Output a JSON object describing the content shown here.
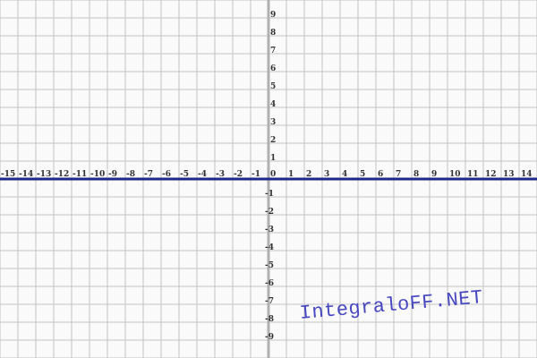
{
  "chart_data": {
    "type": "line",
    "xlim": [
      -15,
      15
    ],
    "ylim": [
      -10,
      10
    ],
    "grid": true,
    "x_tick_labels": [
      "-15",
      "-14",
      "-13",
      "-12",
      "-11",
      "-10",
      "-9",
      "-8",
      "-7",
      "-6",
      "-5",
      "-4",
      "-3",
      "-2",
      "-1",
      "0",
      "1",
      "2",
      "3",
      "4",
      "5",
      "6",
      "7",
      "8",
      "9",
      "10",
      "11",
      "12",
      "13",
      "14"
    ],
    "y_tick_labels": [
      "9",
      "8",
      "7",
      "6",
      "5",
      "4",
      "3",
      "2",
      "1",
      "-1",
      "-2",
      "-3",
      "-4",
      "-5",
      "-6",
      "-7",
      "-8",
      "-9"
    ],
    "series": [
      {
        "x": [
          -15,
          15
        ],
        "y": [
          0,
          0
        ],
        "color": "#1f2a8a"
      }
    ],
    "colors": {
      "grid": "#c4c4c4",
      "axis": "#b0b0b0",
      "background": "#fafafa"
    }
  },
  "watermark": "IntegraloFF.NET"
}
